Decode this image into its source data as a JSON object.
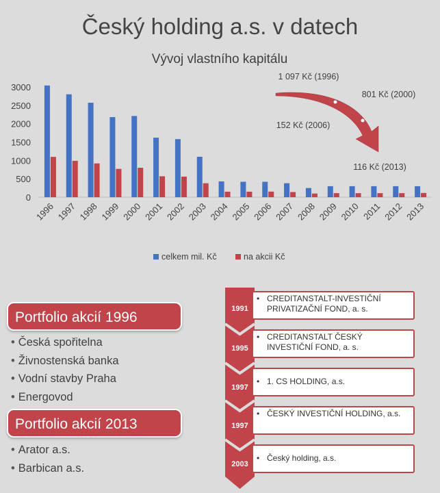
{
  "title": "Český holding a.s. v datech",
  "colors": {
    "series1": "#4472c4",
    "series2": "#c0444a",
    "arrow": "#c0444a"
  },
  "chart_data": {
    "type": "bar",
    "subtitle": "Vývoj vlastního kapitálu",
    "categories": [
      "1996",
      "1997",
      "1998",
      "1999",
      "2000",
      "2001",
      "2002",
      "2003",
      "2004",
      "2005",
      "2006",
      "2007",
      "2008",
      "2009",
      "2010",
      "2011",
      "2012",
      "2013"
    ],
    "series": [
      {
        "name": "celkem mil. Kč",
        "color": "#4472c4",
        "values": [
          3040,
          2800,
          2570,
          2180,
          2210,
          1620,
          1580,
          1100,
          430,
          420,
          420,
          380,
          250,
          300,
          300,
          300,
          300,
          300
        ]
      },
      {
        "name": "na akcii Kč",
        "color": "#c0444a",
        "values": [
          1097,
          990,
          920,
          770,
          801,
          570,
          560,
          380,
          150,
          150,
          152,
          140,
          100,
          110,
          110,
          110,
          110,
          116
        ]
      }
    ],
    "ylim": [
      0,
      3000
    ],
    "yticks": [
      0,
      500,
      1000,
      1500,
      2000,
      2500,
      3000
    ],
    "grid": false,
    "legend_position": "bottom",
    "annotations": [
      "1 097 Kč (1996)",
      "801 Kč (2000)",
      "152 Kč (2006)",
      "116 Kč (2013)"
    ]
  },
  "portfolio": [
    {
      "title": "Portfolio akcií 1996",
      "items": [
        "Česká spořitelna",
        "Živnostenská banka",
        "Vodní stavby Praha",
        "Energovod"
      ]
    },
    {
      "title": "Portfolio akcií 2013",
      "items": [
        "Arator a.s.",
        "Barbican a.s."
      ]
    }
  ],
  "timeline": [
    {
      "year": "1991",
      "name": "CREDITANSTALT-INVESTIČNÍ PRIVATIZAČNÍ FOND, a. s."
    },
    {
      "year": "1995",
      "name": "CREDITANSTALT ČESKÝ INVESTIČNÍ FOND, a. s."
    },
    {
      "year": "1997",
      "name": "1. CS HOLDING, a.s."
    },
    {
      "year": "1997",
      "name": "ČESKÝ INVESTIČNÍ HOLDING, a.s."
    },
    {
      "year": "2003",
      "name": "Český holding, a.s."
    }
  ]
}
